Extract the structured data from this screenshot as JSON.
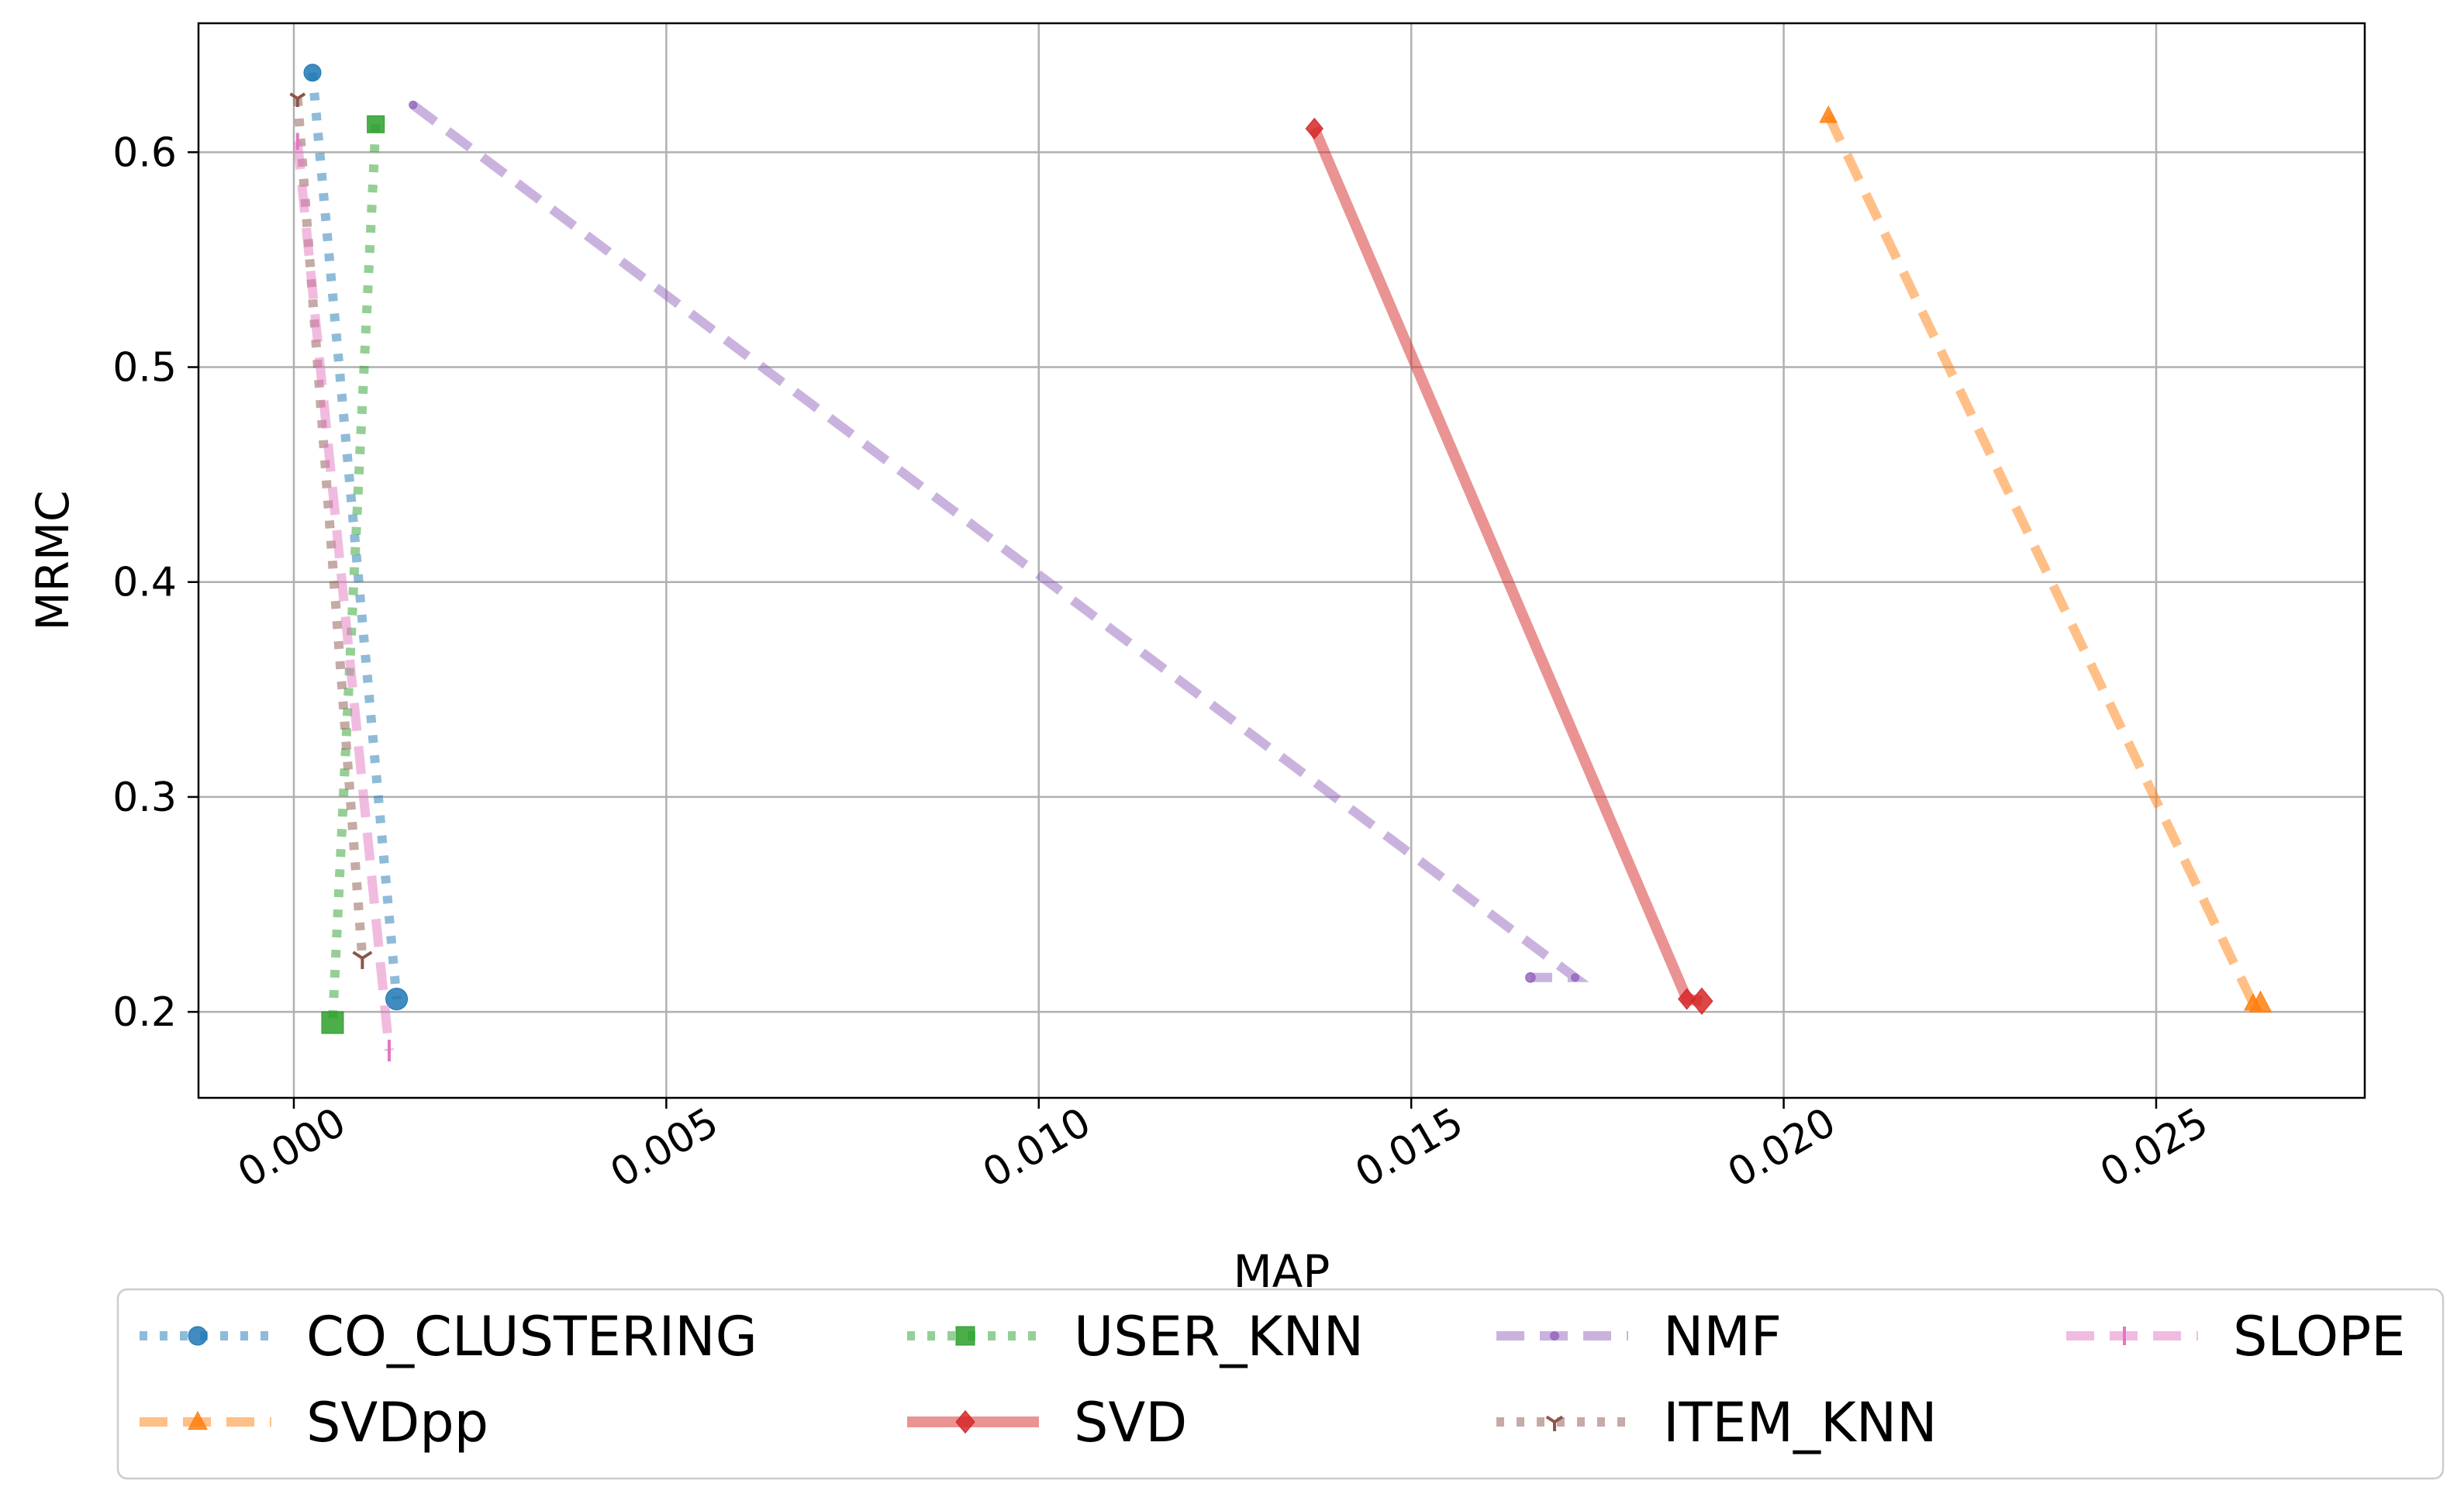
{
  "chart_data": {
    "type": "line",
    "xlabel": "MAP",
    "ylabel": "MRMC",
    "xlim": [
      -0.00128,
      0.0278
    ],
    "ylim": [
      0.16,
      0.66
    ],
    "x_ticks": [
      0.0,
      0.005,
      0.01,
      0.015,
      0.02,
      0.025
    ],
    "x_tick_labels": [
      "0.000",
      "0.005",
      "0.010",
      "0.015",
      "0.020",
      "0.025"
    ],
    "y_ticks": [
      0.2,
      0.3,
      0.4,
      0.5,
      0.6
    ],
    "y_tick_labels": [
      "0.2",
      "0.3",
      "0.4",
      "0.5",
      "0.6"
    ],
    "grid": true,
    "legend_position": "bottom",
    "legend_columns": 4,
    "series": [
      {
        "name": "CO_CLUSTERING",
        "color": "#1f77b4",
        "marker": "circle",
        "linestyle": "dotted",
        "x": [
          0.00025,
          0.00138
        ],
        "y": [
          0.637,
          0.206
        ]
      },
      {
        "name": "SVDpp",
        "color": "#ff7f0e",
        "marker": "triangle",
        "linestyle": "dashed",
        "x": [
          0.0206,
          0.0263,
          0.0264
        ],
        "y": [
          0.617,
          0.204,
          0.204
        ]
      },
      {
        "name": "USER_KNN",
        "color": "#2ca02c",
        "marker": "square",
        "linestyle": "dotted",
        "x": [
          0.0011,
          0.00052
        ],
        "y": [
          0.613,
          0.195
        ]
      },
      {
        "name": "SVD",
        "color": "#d62728",
        "marker": "diamond",
        "linestyle": "solid",
        "x": [
          0.0137,
          0.0187,
          0.0189
        ],
        "y": [
          0.611,
          0.206,
          0.205
        ]
      },
      {
        "name": "NMF",
        "color": "#9467bd",
        "marker": "point",
        "linestyle": "dashed",
        "x": [
          0.0016,
          0.0172,
          0.0166
        ],
        "y": [
          0.622,
          0.216,
          0.216
        ]
      },
      {
        "name": "ITEM_KNN",
        "color": "#8c564b",
        "marker": "tri_down",
        "linestyle": "dotted",
        "x": [
          5e-05,
          0.00092
        ],
        "y": [
          0.625,
          0.225
        ]
      },
      {
        "name": "SLOPE",
        "color": "#e377c2",
        "marker": "vline",
        "linestyle": "dashed",
        "x": [
          5e-05,
          0.00128
        ],
        "y": [
          0.605,
          0.182
        ]
      }
    ]
  }
}
